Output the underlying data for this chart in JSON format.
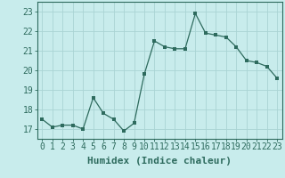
{
  "x": [
    0,
    1,
    2,
    3,
    4,
    5,
    6,
    7,
    8,
    9,
    10,
    11,
    12,
    13,
    14,
    15,
    16,
    17,
    18,
    19,
    20,
    21,
    22,
    23
  ],
  "y": [
    17.5,
    17.1,
    17.2,
    17.2,
    17.0,
    18.6,
    17.8,
    17.5,
    16.9,
    17.3,
    19.8,
    21.5,
    21.2,
    21.1,
    21.1,
    22.9,
    21.9,
    21.8,
    21.7,
    21.2,
    20.5,
    20.4,
    20.2,
    19.6
  ],
  "line_color": "#2e6b5e",
  "marker": "s",
  "marker_size": 2.5,
  "bg_color": "#c8ecec",
  "grid_color": "#aad4d4",
  "xlabel": "Humidex (Indice chaleur)",
  "xlabel_fontsize": 8,
  "tick_fontsize": 7,
  "ylim": [
    16.5,
    23.5
  ],
  "xlim": [
    -0.5,
    23.5
  ],
  "yticks": [
    17,
    18,
    19,
    20,
    21,
    22,
    23
  ],
  "xticks": [
    0,
    1,
    2,
    3,
    4,
    5,
    6,
    7,
    8,
    9,
    10,
    11,
    12,
    13,
    14,
    15,
    16,
    17,
    18,
    19,
    20,
    21,
    22,
    23
  ],
  "spine_color": "#2e6b5e"
}
